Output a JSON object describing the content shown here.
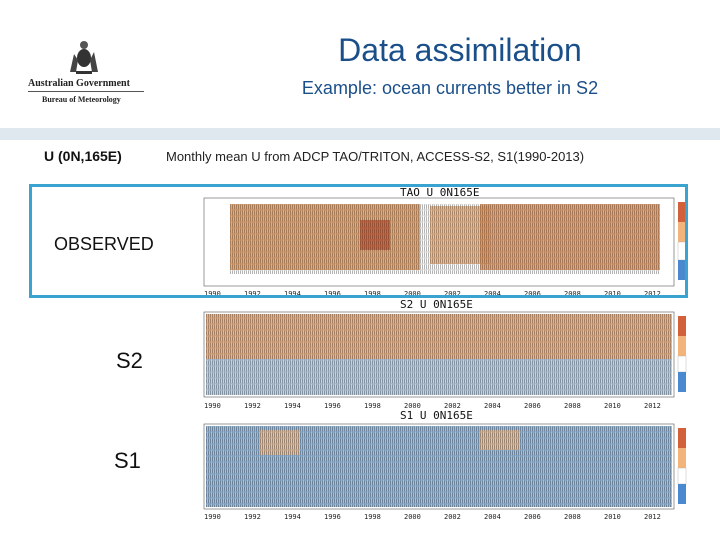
{
  "header": {
    "title": "Data assimilation",
    "subtitle": "Example: ocean currents better in S2"
  },
  "logo": {
    "line1": "Australian Government",
    "line2": "Bureau of Meteorology"
  },
  "location_label": "U (0N,165E)",
  "caption": "Monthly mean U  from ADCP TAO/TRITON, ACCESS-S2, S1(1990-2013)",
  "panels": [
    {
      "title": "TAO U 0N165E",
      "label": "OBSERVED"
    },
    {
      "title": "S2 U 0N165E",
      "label": "S2"
    },
    {
      "title": "S1 U 0N165E",
      "label": "S1"
    }
  ],
  "years": [
    "1990",
    "1992",
    "1994",
    "1996",
    "1998",
    "2000",
    "2002",
    "2004",
    "2006",
    "2008",
    "2010",
    "2012"
  ],
  "colors": {
    "title": "#1a4f8a",
    "highlight": "#3ba3d0",
    "band": "#dfe7ef"
  }
}
